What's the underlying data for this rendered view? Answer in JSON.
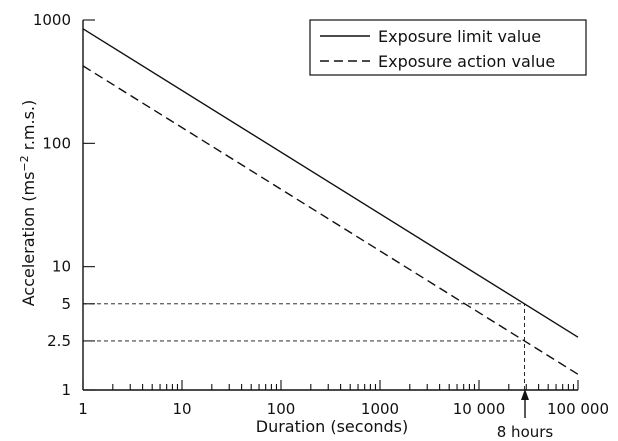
{
  "chart_data": {
    "type": "line",
    "xlabel": "Duration (seconds)",
    "ylabel_main": "Acceleration (ms",
    "ylabel_sup": "−2",
    "ylabel_tail": " r.m.s.)",
    "x_scale": "log",
    "y_scale": "log",
    "xlim": [
      1,
      100000
    ],
    "ylim": [
      1,
      1000
    ],
    "grid": false,
    "legend_position": "top-right",
    "x_ticks": [
      {
        "value": 1,
        "label": "1"
      },
      {
        "value": 10,
        "label": "10"
      },
      {
        "value": 100,
        "label": "100"
      },
      {
        "value": 1000,
        "label": "1000"
      },
      {
        "value": 10000,
        "label": "10 000"
      },
      {
        "value": 100000,
        "label": "100 000"
      }
    ],
    "y_ticks": [
      {
        "value": 1,
        "label": "1"
      },
      {
        "value": 2.5,
        "label": "2.5"
      },
      {
        "value": 5,
        "label": "5"
      },
      {
        "value": 10,
        "label": "10"
      },
      {
        "value": 100,
        "label": "100"
      },
      {
        "value": 1000,
        "label": "1000"
      }
    ],
    "series": [
      {
        "name": "Exposure limit value",
        "style": "solid",
        "x": [
          1,
          100000
        ],
        "y": [
          848.5,
          2.68
        ]
      },
      {
        "name": "Exposure action value",
        "style": "dashed",
        "x": [
          1,
          100000
        ],
        "y": [
          424.3,
          1.34
        ]
      }
    ],
    "reference_lines": [
      {
        "kind": "horizontal",
        "y": 5,
        "x_from": 1,
        "x_to": 28800
      },
      {
        "kind": "horizontal",
        "y": 2.5,
        "x_from": 1,
        "x_to": 28800
      },
      {
        "kind": "vertical",
        "x": 28800,
        "y_from": 1,
        "y_to": 5
      }
    ],
    "annotations": [
      {
        "text": "8 hours",
        "x": 28800
      }
    ]
  }
}
